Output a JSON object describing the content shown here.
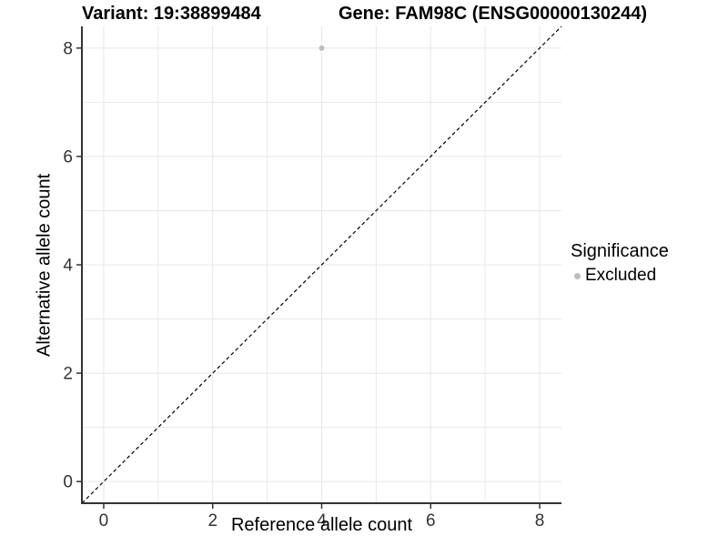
{
  "chart_data": {
    "type": "scatter",
    "title_left": "Variant: 19:38899484",
    "title_right": "Gene: FAM98C (ENSG00000130244)",
    "xlabel": "Reference allele count",
    "ylabel": "Alternative allele count",
    "xlim": [
      -0.4,
      8.4
    ],
    "ylim": [
      -0.4,
      8.4
    ],
    "xticks": [
      0,
      2,
      4,
      6,
      8
    ],
    "yticks": [
      0,
      2,
      4,
      6,
      8
    ],
    "grid_every": 1,
    "grid_range": [
      0,
      8
    ],
    "points": [
      {
        "x": 4,
        "y": 8,
        "significance": "Excluded"
      }
    ],
    "identity_line": {
      "from": [
        -0.4,
        -0.4
      ],
      "to": [
        8.4,
        8.4
      ],
      "style": "dashed"
    },
    "legend": {
      "position": "right",
      "title": "Significance",
      "items": [
        {
          "label": "Excluded",
          "color": "#bdbdbd"
        }
      ]
    },
    "colors": {
      "point": "#bdbdbd",
      "grid": "#e8e8e8",
      "axis_line": "#333333",
      "tick_label": "#333333",
      "diagonal": "#000000",
      "background": "#ffffff"
    }
  }
}
